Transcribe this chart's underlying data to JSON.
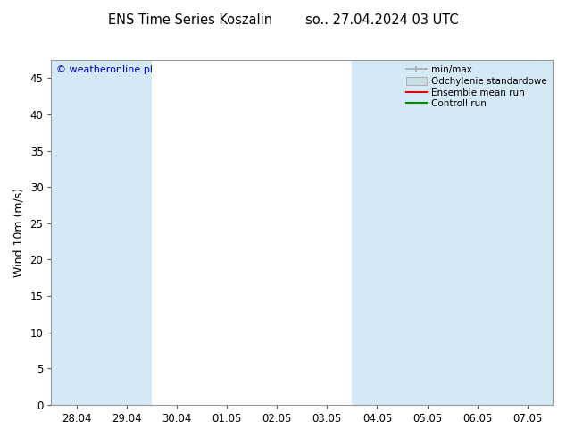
{
  "title": "ENS Time Series Koszalin        so.. 27.04.2024 03 UTC",
  "ylabel": "Wind 10m (m/s)",
  "ylim": [
    0,
    47.5
  ],
  "yticks": [
    0,
    5,
    10,
    15,
    20,
    25,
    30,
    35,
    40,
    45
  ],
  "xlabel_ticks": [
    "28.04",
    "29.04",
    "30.04",
    "01.05",
    "02.05",
    "03.05",
    "04.05",
    "05.05",
    "06.05",
    "07.05"
  ],
  "copyright": "© weatheronline.pl",
  "copyright_color": "#0000cc",
  "bg_color": "#ffffff",
  "plot_bg_color": "#ffffff",
  "band_color": "#d5e8f5",
  "band_x_indices": [
    0,
    1,
    6,
    7,
    8,
    9
  ],
  "legend_labels": [
    "min/max",
    "Odchylenie standardowe",
    "Ensemble mean run",
    "Controll run"
  ],
  "minmax_color": "#aaaaaa",
  "std_color": "#c8dce8",
  "ensemble_color": "#dd0000",
  "control_color": "#008800",
  "title_fontsize": 10.5,
  "tick_fontsize": 8.5,
  "ylabel_fontsize": 9,
  "legend_fontsize": 7.5
}
